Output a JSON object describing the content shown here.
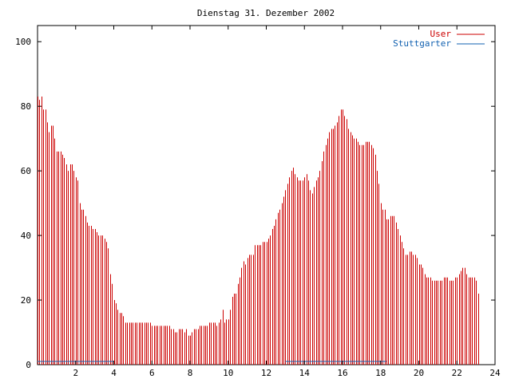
{
  "chart_data": {
    "type": "bar",
    "title": "Dienstag 31. Dezember 2002",
    "xlabel": "",
    "ylabel": "",
    "xlim": [
      0,
      24
    ],
    "ylim": [
      0,
      105
    ],
    "x_ticks": [
      "2",
      "4",
      "6",
      "8",
      "10",
      "12",
      "14",
      "16",
      "18",
      "20",
      "22",
      "24"
    ],
    "y_ticks": [
      "0",
      "20",
      "40",
      "60",
      "80",
      "100"
    ],
    "legend_position": "top-right",
    "grid": false,
    "series": [
      {
        "name": "User",
        "color": "#cc0000",
        "step_hours": 0.1,
        "values": [
          83,
          82,
          83,
          79,
          79,
          75,
          72,
          74,
          74,
          70,
          66,
          66,
          66,
          65,
          64,
          62,
          60,
          62,
          62,
          60,
          58,
          57,
          50,
          48,
          48,
          46,
          44,
          43,
          43,
          42,
          42,
          41,
          40,
          40,
          40,
          39,
          38,
          36,
          28,
          25,
          20,
          19,
          17,
          16,
          16,
          15,
          13,
          13,
          13,
          13,
          13,
          13,
          13,
          13,
          13,
          13,
          13,
          13,
          13,
          13,
          12,
          12,
          12,
          12,
          12,
          12,
          12,
          12,
          12,
          12,
          11,
          11,
          10,
          10,
          11,
          11,
          11,
          10,
          11,
          9,
          9,
          10,
          11,
          11,
          11,
          12,
          12,
          12,
          12,
          12,
          13,
          13,
          13,
          13,
          12,
          13,
          14,
          17,
          13,
          14,
          14,
          17,
          21,
          22,
          22,
          25,
          27,
          30,
          32,
          31,
          33,
          34,
          34,
          34,
          37,
          37,
          37,
          37,
          38,
          38,
          38,
          39,
          40,
          42,
          43,
          45,
          47,
          48,
          50,
          52,
          54,
          56,
          58,
          60,
          61,
          59,
          58,
          57,
          57,
          57,
          58,
          59,
          57,
          54,
          53,
          55,
          57,
          58,
          60,
          63,
          66,
          68,
          70,
          72,
          73,
          73,
          74,
          75,
          77,
          79,
          79,
          77,
          76,
          73,
          72,
          71,
          70,
          70,
          69,
          68,
          68,
          68,
          69,
          69,
          69,
          68,
          67,
          65,
          60,
          56,
          50,
          48,
          48,
          45,
          45,
          46,
          46,
          46,
          44,
          42,
          40,
          38,
          36,
          34,
          34,
          35,
          35,
          34,
          34,
          33,
          31,
          31,
          30,
          28,
          27,
          27,
          27,
          26,
          26,
          26,
          26,
          26,
          26,
          27,
          27,
          27,
          26,
          26,
          26,
          27,
          27,
          28,
          29,
          30,
          30,
          28,
          27,
          27,
          27,
          27,
          26,
          22
        ]
      },
      {
        "name": "Stuttgarter",
        "color": "#1060b0",
        "segments": [
          {
            "x_start": 0.0,
            "x_end": 4.0,
            "value": 1
          },
          {
            "x_start": 13.0,
            "x_end": 18.3,
            "value": 1
          }
        ]
      }
    ]
  }
}
